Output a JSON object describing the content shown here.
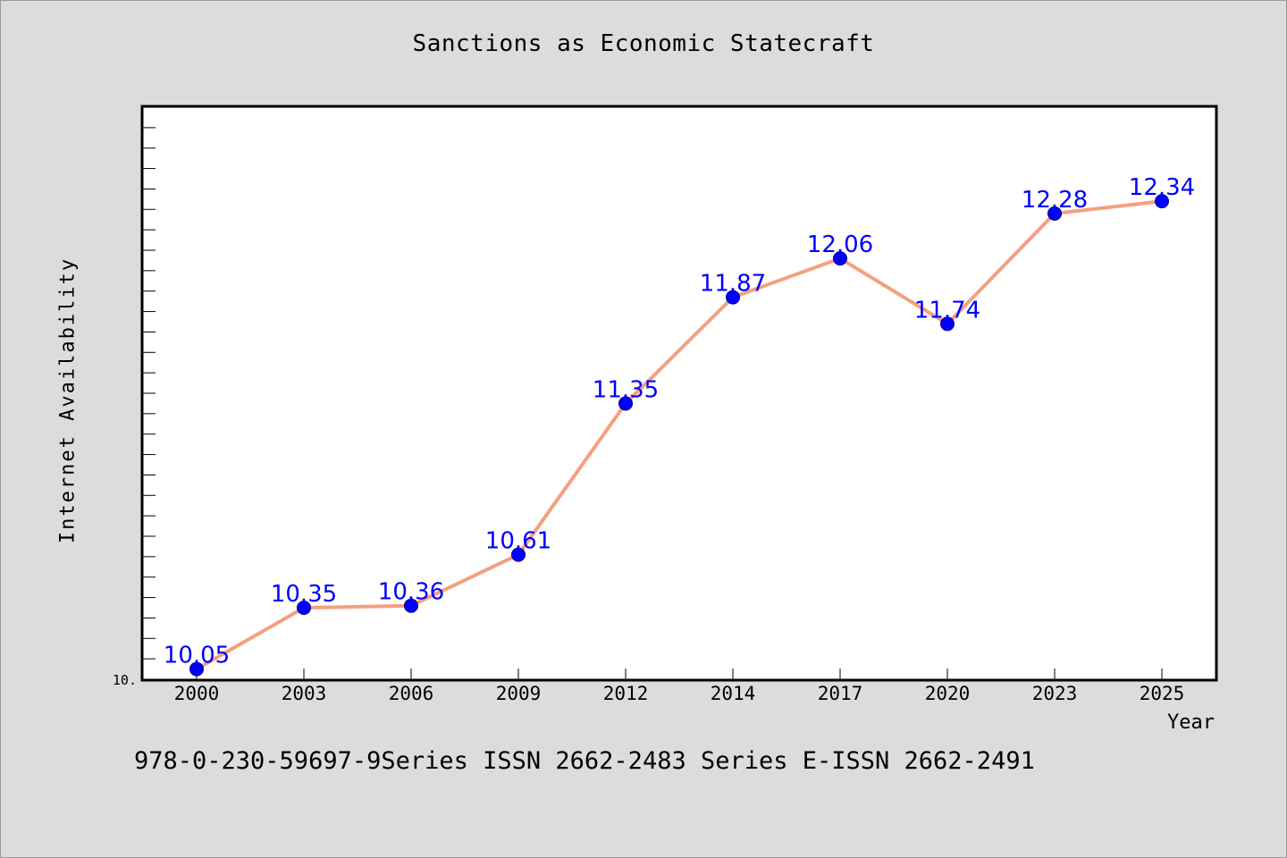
{
  "chart_data": {
    "type": "line",
    "title": "Sanctions as Economic Statecraft",
    "xlabel": "Year",
    "ylabel": "Internet Availability",
    "categories": [
      "2000",
      "2003",
      "2006",
      "2009",
      "2012",
      "2014",
      "2017",
      "2020",
      "2023",
      "2025"
    ],
    "series": [
      {
        "values": [
          10.05,
          10.35,
          10.36,
          10.61,
          11.35,
          11.87,
          12.06,
          11.74,
          12.28,
          12.34
        ],
        "data_labels": [
          "10.05",
          "10.35",
          "10.36",
          "10.61",
          "11.35",
          "11.87",
          "12.06",
          "11.74",
          "12.28",
          "12.34"
        ],
        "line_color": "#f4a07e",
        "marker_color": "#0000ff"
      }
    ],
    "ylim": [
      10.0,
      12.8
    ],
    "y_tick_label": "10.",
    "grid": false,
    "legend": "none"
  },
  "footer": {
    "text": "978-0-230-59697-9Series ISSN 2662-2483 Series E-ISSN 2662-2491"
  },
  "colors": {
    "background": "#dcdcdc",
    "plot_background": "#ffffff",
    "data_label": "#0000ff"
  }
}
